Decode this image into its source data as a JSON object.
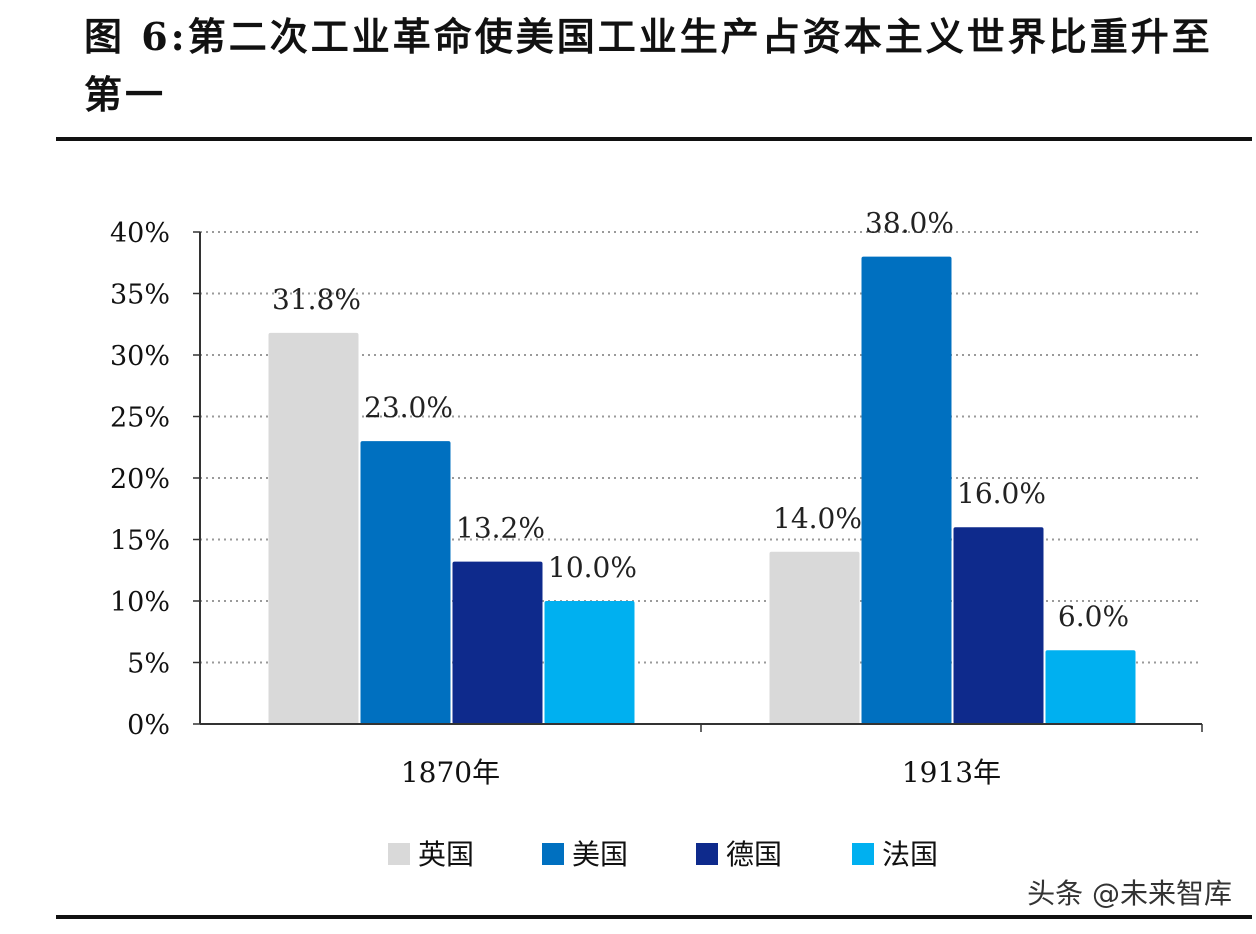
{
  "title": "图 6:第二次工业革命使美国工业生产占资本主义世界比重升至第一",
  "watermark": "头条 @未来智库",
  "chart_data": {
    "type": "bar",
    "categories": [
      "1870年",
      "1913年"
    ],
    "series": [
      {
        "name": "英国",
        "values": [
          31.8,
          14.0
        ],
        "labels": [
          "31.8%",
          "14.0%"
        ],
        "color": "#d9d9d9"
      },
      {
        "name": "美国",
        "values": [
          23.0,
          38.0
        ],
        "labels": [
          "23.0%",
          "38.0%"
        ],
        "color": "#0070c0"
      },
      {
        "name": "德国",
        "values": [
          13.2,
          16.0
        ],
        "labels": [
          "13.2%",
          "16.0%"
        ],
        "color": "#0e2a8c"
      },
      {
        "name": "法国",
        "values": [
          10.0,
          6.0
        ],
        "labels": [
          "10.0%",
          "6.0%"
        ],
        "color": "#00b0f0"
      }
    ],
    "ylim": [
      0,
      40
    ],
    "yticks": [
      "0%",
      "5%",
      "10%",
      "15%",
      "20%",
      "25%",
      "30%",
      "35%",
      "40%"
    ],
    "grid": "horizontal-dotted",
    "legend": "bottom"
  }
}
